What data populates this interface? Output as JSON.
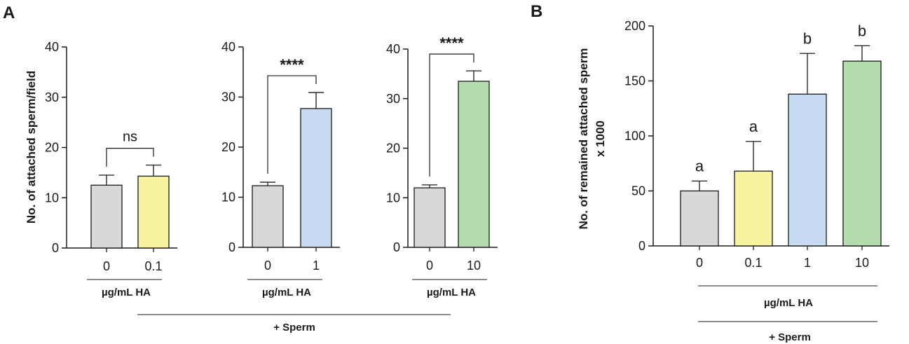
{
  "panels": {
    "a_label": "A",
    "b_label": "B"
  },
  "panel_a": {
    "ylabel": "No. of attached sperm/field",
    "xsub": "µg/mL HA",
    "group_label": "+ Sperm"
  },
  "panel_b": {
    "ylabel_line1": "No. of remained attached sperm",
    "ylabel_line2": "x 1000",
    "xsub": "µg/mL HA",
    "group_label": "+ Sperm"
  },
  "colors": {
    "control": "#d8d8d8",
    "c01": "#f8f3a0",
    "c1": "#c7dcf3",
    "c10": "#b4dcae",
    "stroke": "#1a1a1a"
  },
  "chart_data": [
    {
      "type": "bar",
      "panel": "A",
      "title": "",
      "xlabel": "µg/mL HA",
      "ylabel": "No. of attached sperm/field",
      "ylim": [
        0,
        40
      ],
      "yticks": [
        "0",
        "10",
        "20",
        "30",
        "40"
      ],
      "categories": [
        "0",
        "0.1"
      ],
      "values": [
        12.5,
        14.3
      ],
      "errors": [
        2.0,
        2.2
      ],
      "colors": [
        "#d8d8d8",
        "#f8f3a0"
      ],
      "significance": "ns"
    },
    {
      "type": "bar",
      "panel": "A",
      "title": "",
      "xlabel": "µg/mL HA",
      "ylabel": "",
      "ylim": [
        0,
        40
      ],
      "yticks": [
        "0",
        "10",
        "20",
        "30",
        "40"
      ],
      "categories": [
        "0",
        "1"
      ],
      "values": [
        12.3,
        27.7
      ],
      "errors": [
        0.7,
        3.2
      ],
      "colors": [
        "#d8d8d8",
        "#c7dcf3"
      ],
      "significance": "****"
    },
    {
      "type": "bar",
      "panel": "A",
      "title": "",
      "xlabel": "µg/mL HA",
      "ylabel": "",
      "ylim": [
        0,
        40
      ],
      "yticks": [
        "0",
        "10",
        "20",
        "30",
        "40"
      ],
      "categories": [
        "0",
        "10"
      ],
      "values": [
        12.0,
        33.5
      ],
      "errors": [
        0.6,
        2.1
      ],
      "colors": [
        "#d8d8d8",
        "#b4dcae"
      ],
      "significance": "****"
    },
    {
      "type": "bar",
      "panel": "B",
      "title": "",
      "xlabel": "µg/mL HA",
      "ylabel": "No. of remained attached sperm x 1000",
      "ylim": [
        0,
        200
      ],
      "yticks": [
        "0",
        "50",
        "100",
        "150",
        "200"
      ],
      "categories": [
        "0",
        "0.1",
        "1",
        "10"
      ],
      "values": [
        50,
        68,
        138,
        168
      ],
      "errors": [
        9,
        27,
        37,
        14
      ],
      "colors": [
        "#d8d8d8",
        "#f8f3a0",
        "#c7dcf3",
        "#b4dcae"
      ],
      "letters": [
        "a",
        "a",
        "b",
        "b"
      ]
    }
  ]
}
